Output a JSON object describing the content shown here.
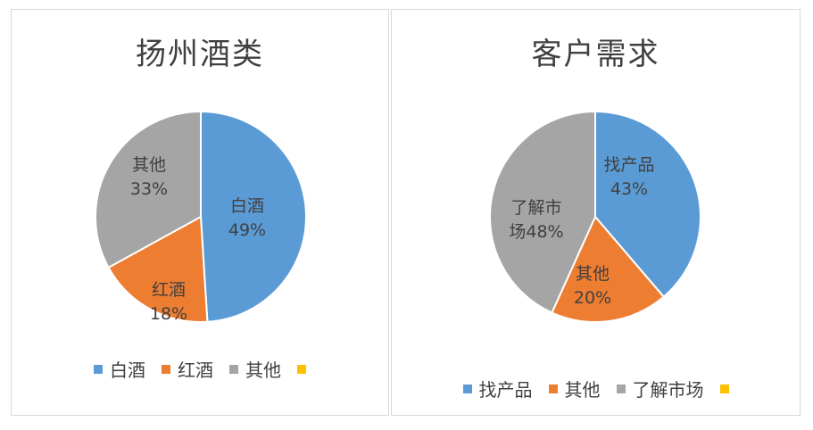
{
  "chart_data": [
    {
      "type": "pie",
      "title": "扬州酒类",
      "categories": [
        "白酒",
        "红酒",
        "其他",
        ""
      ],
      "values": [
        49,
        18,
        33,
        0
      ],
      "value_labels": [
        "49%",
        "18%",
        "33%",
        ""
      ],
      "colors": [
        "#5b9bd5",
        "#ed7d31",
        "#a5a5a5",
        "#ffc000"
      ],
      "legend": "bottom"
    },
    {
      "type": "pie",
      "title": "客户需求",
      "categories": [
        "找产品",
        "其他",
        "了解市场",
        ""
      ],
      "values": [
        43,
        20,
        48,
        0
      ],
      "value_labels": [
        "43%",
        "20%",
        "48%",
        ""
      ],
      "colors": [
        "#5b9bd5",
        "#ed7d31",
        "#a5a5a5",
        "#ffc000"
      ],
      "legend": "bottom"
    }
  ]
}
